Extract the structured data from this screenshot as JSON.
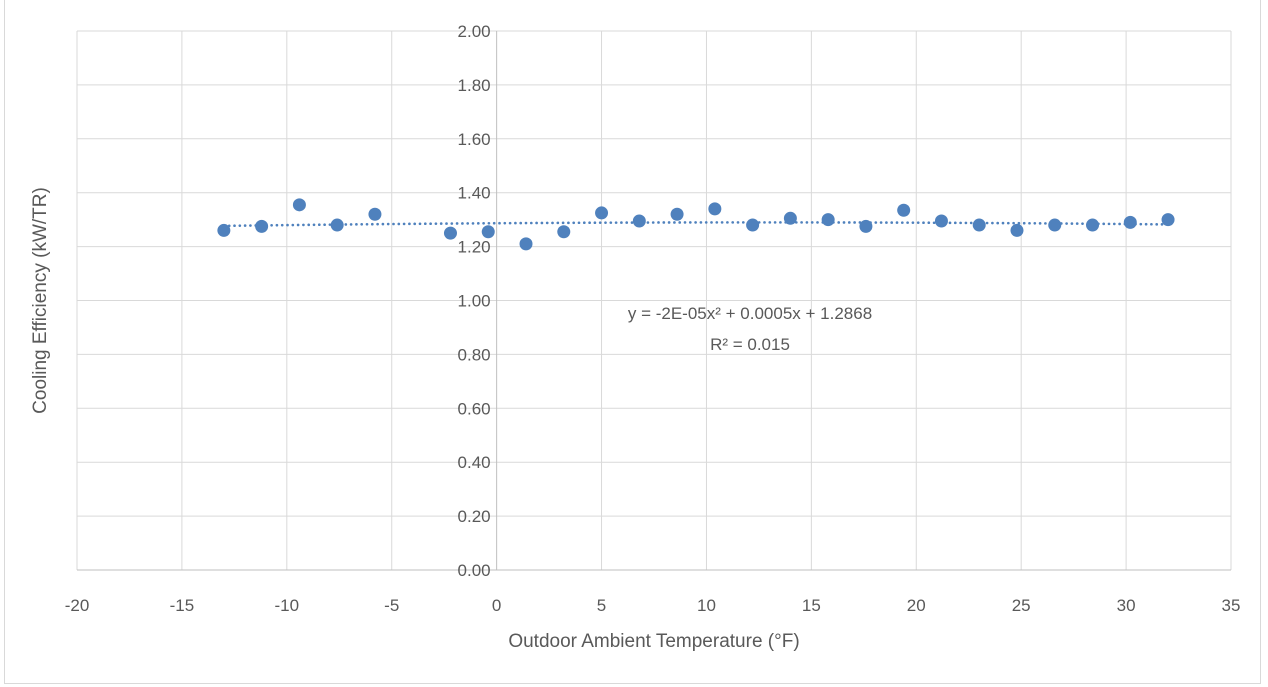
{
  "chart_data": {
    "type": "scatter",
    "title": "",
    "xlabel": "Outdoor Ambient Temperature (°F)",
    "ylabel": "Cooling Efficiency (kW/TR)",
    "xlim": [
      -20,
      35
    ],
    "ylim": [
      0,
      2
    ],
    "x_ticks": [
      -20,
      -15,
      -10,
      -5,
      0,
      5,
      10,
      15,
      20,
      25,
      30,
      35
    ],
    "x_tick_labels": [
      "-20",
      "-15",
      "-10",
      "-5",
      "0",
      "5",
      "10",
      "15",
      "20",
      "25",
      "30",
      "35"
    ],
    "y_ticks": [
      0,
      0.2,
      0.4,
      0.6,
      0.8,
      1.0,
      1.2,
      1.4,
      1.6,
      1.8,
      2.0
    ],
    "y_tick_labels": [
      "0.00",
      "0.20",
      "0.40",
      "0.60",
      "0.80",
      "1.00",
      "1.20",
      "1.40",
      "1.60",
      "1.80",
      "2.00"
    ],
    "grid": true,
    "legend": "none",
    "point_color": "#4f81bd",
    "trendline": {
      "type": "polynomial-2",
      "coefficients": [
        -2e-05,
        0.0005,
        1.2868
      ],
      "x_range": [
        -13,
        32
      ],
      "equation": "y = -2E-05x² + 0.0005x + 1.2868",
      "r_squared": "R² = 0.015",
      "color": "#4f81bd"
    },
    "series": [
      {
        "x": [
          -13.0,
          -11.2,
          -9.4,
          -7.6,
          -5.8,
          -2.2,
          -0.4,
          1.4,
          3.2,
          5.0,
          6.8,
          8.6,
          10.4,
          12.2,
          14.0,
          15.8,
          17.6,
          19.4,
          21.2,
          23.0,
          24.8,
          26.6,
          28.4,
          30.2,
          32.0
        ],
        "y": [
          1.26,
          1.275,
          1.355,
          1.28,
          1.32,
          1.25,
          1.255,
          1.21,
          1.255,
          1.325,
          1.295,
          1.32,
          1.34,
          1.28,
          1.305,
          1.3,
          1.275,
          1.335,
          1.295,
          1.28,
          1.26,
          1.28,
          1.28,
          1.29,
          1.3
        ]
      }
    ]
  }
}
